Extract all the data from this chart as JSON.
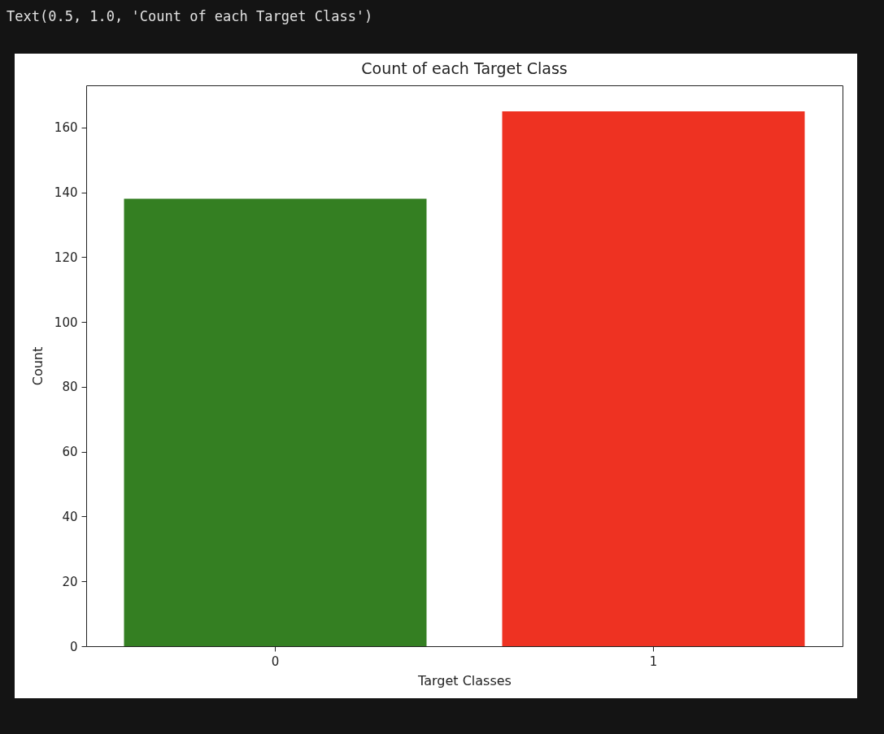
{
  "chart_data": {
    "type": "bar",
    "title": "Count of each Target Class",
    "xlabel": "Target Classes",
    "ylabel": "Count",
    "categories": [
      "0",
      "1"
    ],
    "values": [
      138,
      165
    ],
    "colors": [
      "#347f22",
      "#ee3222"
    ],
    "ylim": [
      0,
      173
    ],
    "yticks": [
      0,
      20,
      40,
      60,
      80,
      100,
      120,
      140,
      160
    ],
    "grid": false,
    "legend": false,
    "annotations": [
      "Text(0.5, 1.0, 'Count of each Target Class')"
    ]
  }
}
